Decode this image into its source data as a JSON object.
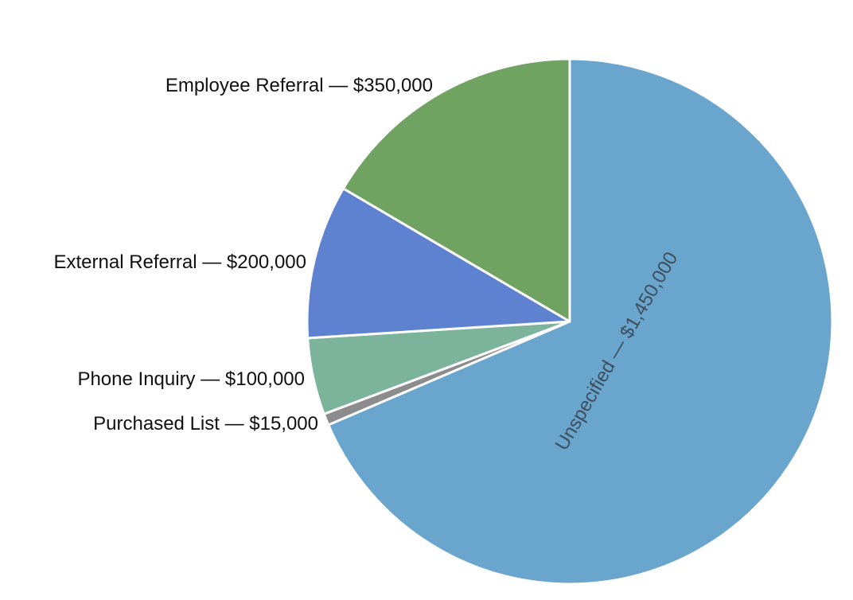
{
  "chart_data": {
    "type": "pie",
    "title": "",
    "start": "12 o'clock",
    "direction": "clockwise",
    "slices": [
      {
        "label": "Unspecified — $1,450,000",
        "category": "Unspecified",
        "value": 1450000,
        "color": "#6aa5cd",
        "label_position": "inside-rotated"
      },
      {
        "label": "Purchased List — $15,000",
        "category": "Purchased List",
        "value": 15000,
        "color": "#8c8c8c",
        "label_position": "outside-left"
      },
      {
        "label": "Phone Inquiry — $100,000",
        "category": "Phone Inquiry",
        "value": 100000,
        "color": "#7bb39b",
        "label_position": "outside-left"
      },
      {
        "label": "External Referral — $200,000",
        "category": "External Referral",
        "value": 200000,
        "color": "#5f82d0",
        "label_position": "outside-left"
      },
      {
        "label": "Employee Referral — $350,000",
        "category": "Employee Referral",
        "value": 350000,
        "color": "#70a362",
        "label_position": "outside-left"
      }
    ]
  }
}
